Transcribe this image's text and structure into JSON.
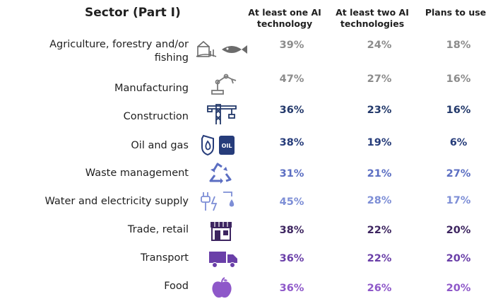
{
  "chart_data": {
    "type": "table",
    "title": "",
    "headers": {
      "sector": "Sector (Part I)",
      "col1": [
        "At least one AI",
        "technology"
      ],
      "col2": [
        "At least two AI",
        "technologies"
      ],
      "col3": [
        "Plans to use"
      ]
    },
    "rows": [
      {
        "sector": [
          "Agriculture, forestry and/or",
          "fishing"
        ],
        "icon": "farm-fishing-icon",
        "values": [
          "39%",
          "24%",
          "18%"
        ],
        "color": "#8c8c8c"
      },
      {
        "sector": [
          "Manufacturing"
        ],
        "icon": "robot-arm-icon",
        "values": [
          "47%",
          "27%",
          "16%"
        ],
        "color": "#8c8c8c"
      },
      {
        "sector": [
          "Construction"
        ],
        "icon": "crane-icon",
        "values": [
          "36%",
          "23%",
          "16%"
        ],
        "color": "#22386a"
      },
      {
        "sector": [
          "Oil and gas"
        ],
        "icon": "oil-barrel-icon",
        "values": [
          "38%",
          "19%",
          "6%"
        ],
        "color": "#263c7a"
      },
      {
        "sector": [
          "Waste management"
        ],
        "icon": "recycle-icon",
        "values": [
          "31%",
          "21%",
          "27%"
        ],
        "color": "#5b6ec2"
      },
      {
        "sector": [
          "Water and electricity supply"
        ],
        "icon": "plug-water-icon",
        "values": [
          "45%",
          "28%",
          "17%"
        ],
        "color": "#7d8ed6"
      },
      {
        "sector": [
          "Trade, retail"
        ],
        "icon": "shop-icon",
        "values": [
          "38%",
          "22%",
          "20%"
        ],
        "color": "#3d2560"
      },
      {
        "sector": [
          "Transport"
        ],
        "icon": "truck-icon",
        "values": [
          "36%",
          "22%",
          "20%"
        ],
        "color": "#6a3fa8"
      },
      {
        "sector": [
          "Food"
        ],
        "icon": "apple-icon",
        "values": [
          "36%",
          "26%",
          "20%"
        ],
        "color": "#8e58c9"
      }
    ]
  }
}
